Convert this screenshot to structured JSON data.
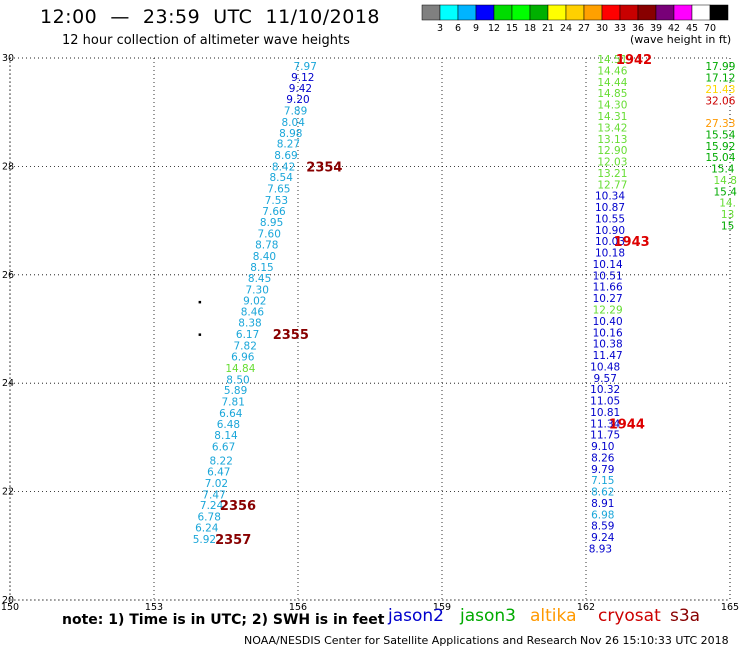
{
  "header": {
    "title": "12:00  —  23:59  UTC  11/10/2018",
    "subtitle": "12 hour collection of altimeter wave heights",
    "scale_label": "(wave height in ft)"
  },
  "colorbar": {
    "ticks": [
      "3",
      "6",
      "9",
      "12",
      "15",
      "18",
      "21",
      "24",
      "27",
      "30",
      "33",
      "36",
      "39",
      "42",
      "45",
      "70"
    ],
    "colors": [
      "#808080",
      "#00ffff",
      "#00b4ff",
      "#0000ff",
      "#00dc00",
      "#00ff00",
      "#00b000",
      "#ffff00",
      "#ffd000",
      "#ffa000",
      "#ff0000",
      "#c80000",
      "#880000",
      "#780078",
      "#ff00ff",
      "#ffffff",
      "#000000"
    ]
  },
  "footer": {
    "note": "note:  1)  Time is in UTC;  2)  SWH is in feet",
    "legend": [
      {
        "label": "jason2",
        "color": "#0000cc"
      },
      {
        "label": "jason3",
        "color": "#00aa00"
      },
      {
        "label": "altika",
        "color": "#ff9900"
      },
      {
        "label": "cryosat",
        "color": "#cc0000"
      },
      {
        "label": "s3a",
        "color": "#880000"
      }
    ],
    "credit": "NOAA/NESDIS Center for Satellite Applications and Research",
    "timestamp": "Nov 26 15:10:33 UTC 2018"
  },
  "chart_data": {
    "type": "scatter",
    "xlim": [
      150,
      165
    ],
    "ylim": [
      20,
      30
    ],
    "xticks": [
      "150",
      "153",
      "156",
      "159",
      "162",
      "165"
    ],
    "yticks": [
      "20",
      "22",
      "24",
      "26",
      "28",
      "30"
    ],
    "grid": true,
    "colors": {
      "s3a_blue": "#1aa6d9",
      "s3a_green": "#66dd33",
      "jason2": "#0000cc",
      "jason3_green": "#00aa00",
      "jason3_light": "#66dd33",
      "altika": "#ff9900",
      "altika_yellow": "#ffd700",
      "cryosat": "#cc0000",
      "time_label": "#880000",
      "time_label_red": "#dd0000"
    },
    "tracks": [
      {
        "name": "s3a",
        "points": [
          {
            "x": 156.15,
            "y": 29.85,
            "v": "7.97",
            "c": "s3a_blue"
          },
          {
            "x": 156.1,
            "y": 29.65,
            "v": "9.12",
            "c": "jason2"
          },
          {
            "x": 156.05,
            "y": 29.45,
            "v": "9.42",
            "c": "jason2"
          },
          {
            "x": 156.0,
            "y": 29.24,
            "v": "9.20",
            "c": "jason2"
          },
          {
            "x": 155.95,
            "y": 29.03,
            "v": "7.89",
            "c": "s3a_blue"
          },
          {
            "x": 155.9,
            "y": 28.82,
            "v": "8.04",
            "c": "s3a_blue"
          },
          {
            "x": 155.85,
            "y": 28.62,
            "v": "8.98",
            "c": "s3a_blue"
          },
          {
            "x": 155.8,
            "y": 28.42,
            "v": "8.27",
            "c": "s3a_blue"
          },
          {
            "x": 155.75,
            "y": 28.21,
            "v": "8.69",
            "c": "s3a_blue"
          },
          {
            "x": 155.7,
            "y": 28.0,
            "v": "8.42",
            "c": "s3a_blue"
          },
          {
            "x": 155.65,
            "y": 27.8,
            "v": "8.54",
            "c": "s3a_blue"
          },
          {
            "x": 155.6,
            "y": 27.59,
            "v": "7.65",
            "c": "s3a_blue"
          },
          {
            "x": 155.55,
            "y": 27.38,
            "v": "7.53",
            "c": "s3a_blue"
          },
          {
            "x": 155.5,
            "y": 27.18,
            "v": "7.66",
            "c": "s3a_blue"
          },
          {
            "x": 155.45,
            "y": 26.97,
            "v": "8.95",
            "c": "s3a_blue"
          },
          {
            "x": 155.4,
            "y": 26.76,
            "v": "7.60",
            "c": "s3a_blue"
          },
          {
            "x": 155.35,
            "y": 26.56,
            "v": "8.78",
            "c": "s3a_blue"
          },
          {
            "x": 155.3,
            "y": 26.35,
            "v": "8.40",
            "c": "s3a_blue"
          },
          {
            "x": 155.25,
            "y": 26.14,
            "v": "8.15",
            "c": "s3a_blue"
          },
          {
            "x": 155.2,
            "y": 25.94,
            "v": "8.45",
            "c": "s3a_blue"
          },
          {
            "x": 155.15,
            "y": 25.73,
            "v": "7.30",
            "c": "s3a_blue"
          },
          {
            "x": 155.1,
            "y": 25.53,
            "v": "9.02",
            "c": "s3a_blue"
          },
          {
            "x": 155.05,
            "y": 25.32,
            "v": "8.46",
            "c": "s3a_blue"
          },
          {
            "x": 155.0,
            "y": 25.12,
            "v": "8.38",
            "c": "s3a_blue"
          },
          {
            "x": 154.95,
            "y": 24.91,
            "v": "6.17",
            "c": "s3a_blue"
          },
          {
            "x": 154.9,
            "y": 24.7,
            "v": "7.82",
            "c": "s3a_blue"
          },
          {
            "x": 154.85,
            "y": 24.49,
            "v": "6.96",
            "c": "s3a_blue"
          },
          {
            "x": 154.8,
            "y": 24.28,
            "v": "14.84",
            "c": "s3a_green"
          },
          {
            "x": 154.75,
            "y": 24.07,
            "v": "8.50",
            "c": "s3a_blue"
          },
          {
            "x": 154.7,
            "y": 23.87,
            "v": "5.89",
            "c": "s3a_blue"
          },
          {
            "x": 154.65,
            "y": 23.66,
            "v": "7.81",
            "c": "s3a_blue"
          },
          {
            "x": 154.6,
            "y": 23.45,
            "v": "6.64",
            "c": "s3a_blue"
          },
          {
            "x": 154.55,
            "y": 23.25,
            "v": "6.48",
            "c": "s3a_blue"
          },
          {
            "x": 154.5,
            "y": 23.04,
            "v": "8.14",
            "c": "s3a_blue"
          },
          {
            "x": 154.45,
            "y": 22.83,
            "v": "6.67",
            "c": "s3a_blue"
          },
          {
            "x": 154.4,
            "y": 22.57,
            "v": "8.22",
            "c": "s3a_blue"
          },
          {
            "x": 154.35,
            "y": 22.37,
            "v": "6.47",
            "c": "s3a_blue"
          },
          {
            "x": 154.3,
            "y": 22.16,
            "v": "7.02",
            "c": "s3a_blue"
          },
          {
            "x": 154.25,
            "y": 21.95,
            "v": "7.47",
            "c": "s3a_blue"
          },
          {
            "x": 154.2,
            "y": 21.75,
            "v": "7.24",
            "c": "s3a_blue"
          },
          {
            "x": 154.15,
            "y": 21.54,
            "v": "6.78",
            "c": "s3a_blue"
          },
          {
            "x": 154.1,
            "y": 21.34,
            "v": "6.24",
            "c": "s3a_blue"
          },
          {
            "x": 154.05,
            "y": 21.13,
            "v": "5.92",
            "c": "s3a_blue"
          }
        ]
      },
      {
        "name": "jason2",
        "points": [
          {
            "x": 162.55,
            "y": 29.98,
            "v": "14.51",
            "c": "jason3_light"
          },
          {
            "x": 162.55,
            "y": 29.77,
            "v": "14.46",
            "c": "jason3_light"
          },
          {
            "x": 162.55,
            "y": 29.56,
            "v": "14.44",
            "c": "jason3_light"
          },
          {
            "x": 162.55,
            "y": 29.35,
            "v": "14.85",
            "c": "jason3_light"
          },
          {
            "x": 162.55,
            "y": 29.14,
            "v": "14.30",
            "c": "jason3_light"
          },
          {
            "x": 162.55,
            "y": 28.93,
            "v": "14.31",
            "c": "jason3_light"
          },
          {
            "x": 162.55,
            "y": 28.72,
            "v": "13.42",
            "c": "jason3_light"
          },
          {
            "x": 162.55,
            "y": 28.51,
            "v": "13.13",
            "c": "jason3_light"
          },
          {
            "x": 162.55,
            "y": 28.3,
            "v": "12.90",
            "c": "jason3_light"
          },
          {
            "x": 162.55,
            "y": 28.09,
            "v": "12.03",
            "c": "jason3_light"
          },
          {
            "x": 162.55,
            "y": 27.88,
            "v": "13.21",
            "c": "jason3_light"
          },
          {
            "x": 162.55,
            "y": 27.67,
            "v": "12.77",
            "c": "jason3_light"
          },
          {
            "x": 162.5,
            "y": 27.46,
            "v": "10.34",
            "c": "jason2"
          },
          {
            "x": 162.5,
            "y": 27.25,
            "v": "10.87",
            "c": "jason2"
          },
          {
            "x": 162.5,
            "y": 27.04,
            "v": "10.55",
            "c": "jason2"
          },
          {
            "x": 162.5,
            "y": 26.83,
            "v": "10.90",
            "c": "jason2"
          },
          {
            "x": 162.5,
            "y": 26.62,
            "v": "10.03",
            "c": "jason2"
          },
          {
            "x": 162.5,
            "y": 26.41,
            "v": "10.18",
            "c": "jason2"
          },
          {
            "x": 162.45,
            "y": 26.2,
            "v": "10.14",
            "c": "jason2"
          },
          {
            "x": 162.45,
            "y": 25.99,
            "v": "10.51",
            "c": "jason2"
          },
          {
            "x": 162.45,
            "y": 25.78,
            "v": "11.66",
            "c": "jason2"
          },
          {
            "x": 162.45,
            "y": 25.57,
            "v": "10.27",
            "c": "jason2"
          },
          {
            "x": 162.45,
            "y": 25.36,
            "v": "12.29",
            "c": "jason3_light"
          },
          {
            "x": 162.45,
            "y": 25.15,
            "v": "10.40",
            "c": "jason2"
          },
          {
            "x": 162.45,
            "y": 24.94,
            "v": "10.16",
            "c": "jason2"
          },
          {
            "x": 162.45,
            "y": 24.73,
            "v": "10.38",
            "c": "jason2"
          },
          {
            "x": 162.45,
            "y": 24.52,
            "v": "11.47",
            "c": "jason2"
          },
          {
            "x": 162.4,
            "y": 24.31,
            "v": "10.48",
            "c": "jason2"
          },
          {
            "x": 162.4,
            "y": 24.1,
            "v": "9.57",
            "c": "jason2"
          },
          {
            "x": 162.4,
            "y": 23.89,
            "v": "10.32",
            "c": "jason2"
          },
          {
            "x": 162.4,
            "y": 23.68,
            "v": "11.05",
            "c": "jason2"
          },
          {
            "x": 162.4,
            "y": 23.47,
            "v": "10.81",
            "c": "jason2"
          },
          {
            "x": 162.4,
            "y": 23.26,
            "v": "11.34",
            "c": "jason2"
          },
          {
            "x": 162.4,
            "y": 23.05,
            "v": "11.75",
            "c": "jason2"
          },
          {
            "x": 162.35,
            "y": 22.84,
            "v": "9.10",
            "c": "jason2"
          },
          {
            "x": 162.35,
            "y": 22.63,
            "v": "8.26",
            "c": "jason2"
          },
          {
            "x": 162.35,
            "y": 22.42,
            "v": "9.79",
            "c": "jason2"
          },
          {
            "x": 162.35,
            "y": 22.21,
            "v": "7.15",
            "c": "s3a_blue"
          },
          {
            "x": 162.35,
            "y": 22.0,
            "v": "8.62",
            "c": "s3a_blue"
          },
          {
            "x": 162.35,
            "y": 21.79,
            "v": "8.91",
            "c": "jason2"
          },
          {
            "x": 162.35,
            "y": 21.58,
            "v": "6.98",
            "c": "s3a_blue"
          },
          {
            "x": 162.35,
            "y": 21.37,
            "v": "8.59",
            "c": "jason2"
          },
          {
            "x": 162.35,
            "y": 21.16,
            "v": "9.24",
            "c": "jason2"
          },
          {
            "x": 162.3,
            "y": 20.95,
            "v": "8.93",
            "c": "jason2"
          }
        ]
      },
      {
        "name": "jason3",
        "points": [
          {
            "x": 164.8,
            "y": 29.85,
            "v": "17.99",
            "c": "jason3_green"
          },
          {
            "x": 164.8,
            "y": 29.64,
            "v": "17.12",
            "c": "jason3_green"
          },
          {
            "x": 164.8,
            "y": 29.43,
            "v": "21.43",
            "c": "altika_yellow"
          },
          {
            "x": 164.8,
            "y": 29.22,
            "v": "32.06",
            "c": "cryosat"
          },
          {
            "x": 164.8,
            "y": 28.8,
            "v": "27.33",
            "c": "altika"
          },
          {
            "x": 164.8,
            "y": 28.59,
            "v": "15.54",
            "c": "jason3_green"
          },
          {
            "x": 164.8,
            "y": 28.38,
            "v": "15.92",
            "c": "jason3_green"
          },
          {
            "x": 164.8,
            "y": 28.17,
            "v": "15.04",
            "c": "jason3_green"
          },
          {
            "x": 164.85,
            "y": 27.96,
            "v": "15.4",
            "c": "jason3_green"
          },
          {
            "x": 164.9,
            "y": 27.75,
            "v": "14.8",
            "c": "jason3_light"
          },
          {
            "x": 164.9,
            "y": 27.54,
            "v": "15.4",
            "c": "jason3_green"
          },
          {
            "x": 164.95,
            "y": 27.33,
            "v": "14.",
            "c": "jason3_light"
          },
          {
            "x": 164.95,
            "y": 27.12,
            "v": "13",
            "c": "jason3_light"
          },
          {
            "x": 164.95,
            "y": 26.91,
            "v": "15",
            "c": "jason3_green"
          }
        ]
      }
    ],
    "time_labels": [
      {
        "x": 156.55,
        "y": 28.0,
        "v": "2354",
        "c": "time_label"
      },
      {
        "x": 155.85,
        "y": 24.91,
        "v": "2355",
        "c": "time_label"
      },
      {
        "x": 154.75,
        "y": 21.75,
        "v": "2356",
        "c": "time_label"
      },
      {
        "x": 154.65,
        "y": 21.13,
        "v": "2357",
        "c": "time_label"
      },
      {
        "x": 163.0,
        "y": 29.98,
        "v": "1942",
        "c": "time_label_red"
      },
      {
        "x": 162.95,
        "y": 26.62,
        "v": "1943",
        "c": "time_label_red"
      },
      {
        "x": 162.85,
        "y": 23.26,
        "v": "1944",
        "c": "time_label_red"
      }
    ],
    "dots": [
      {
        "x": 153.95,
        "y": 25.5
      },
      {
        "x": 153.95,
        "y": 24.9
      }
    ]
  }
}
